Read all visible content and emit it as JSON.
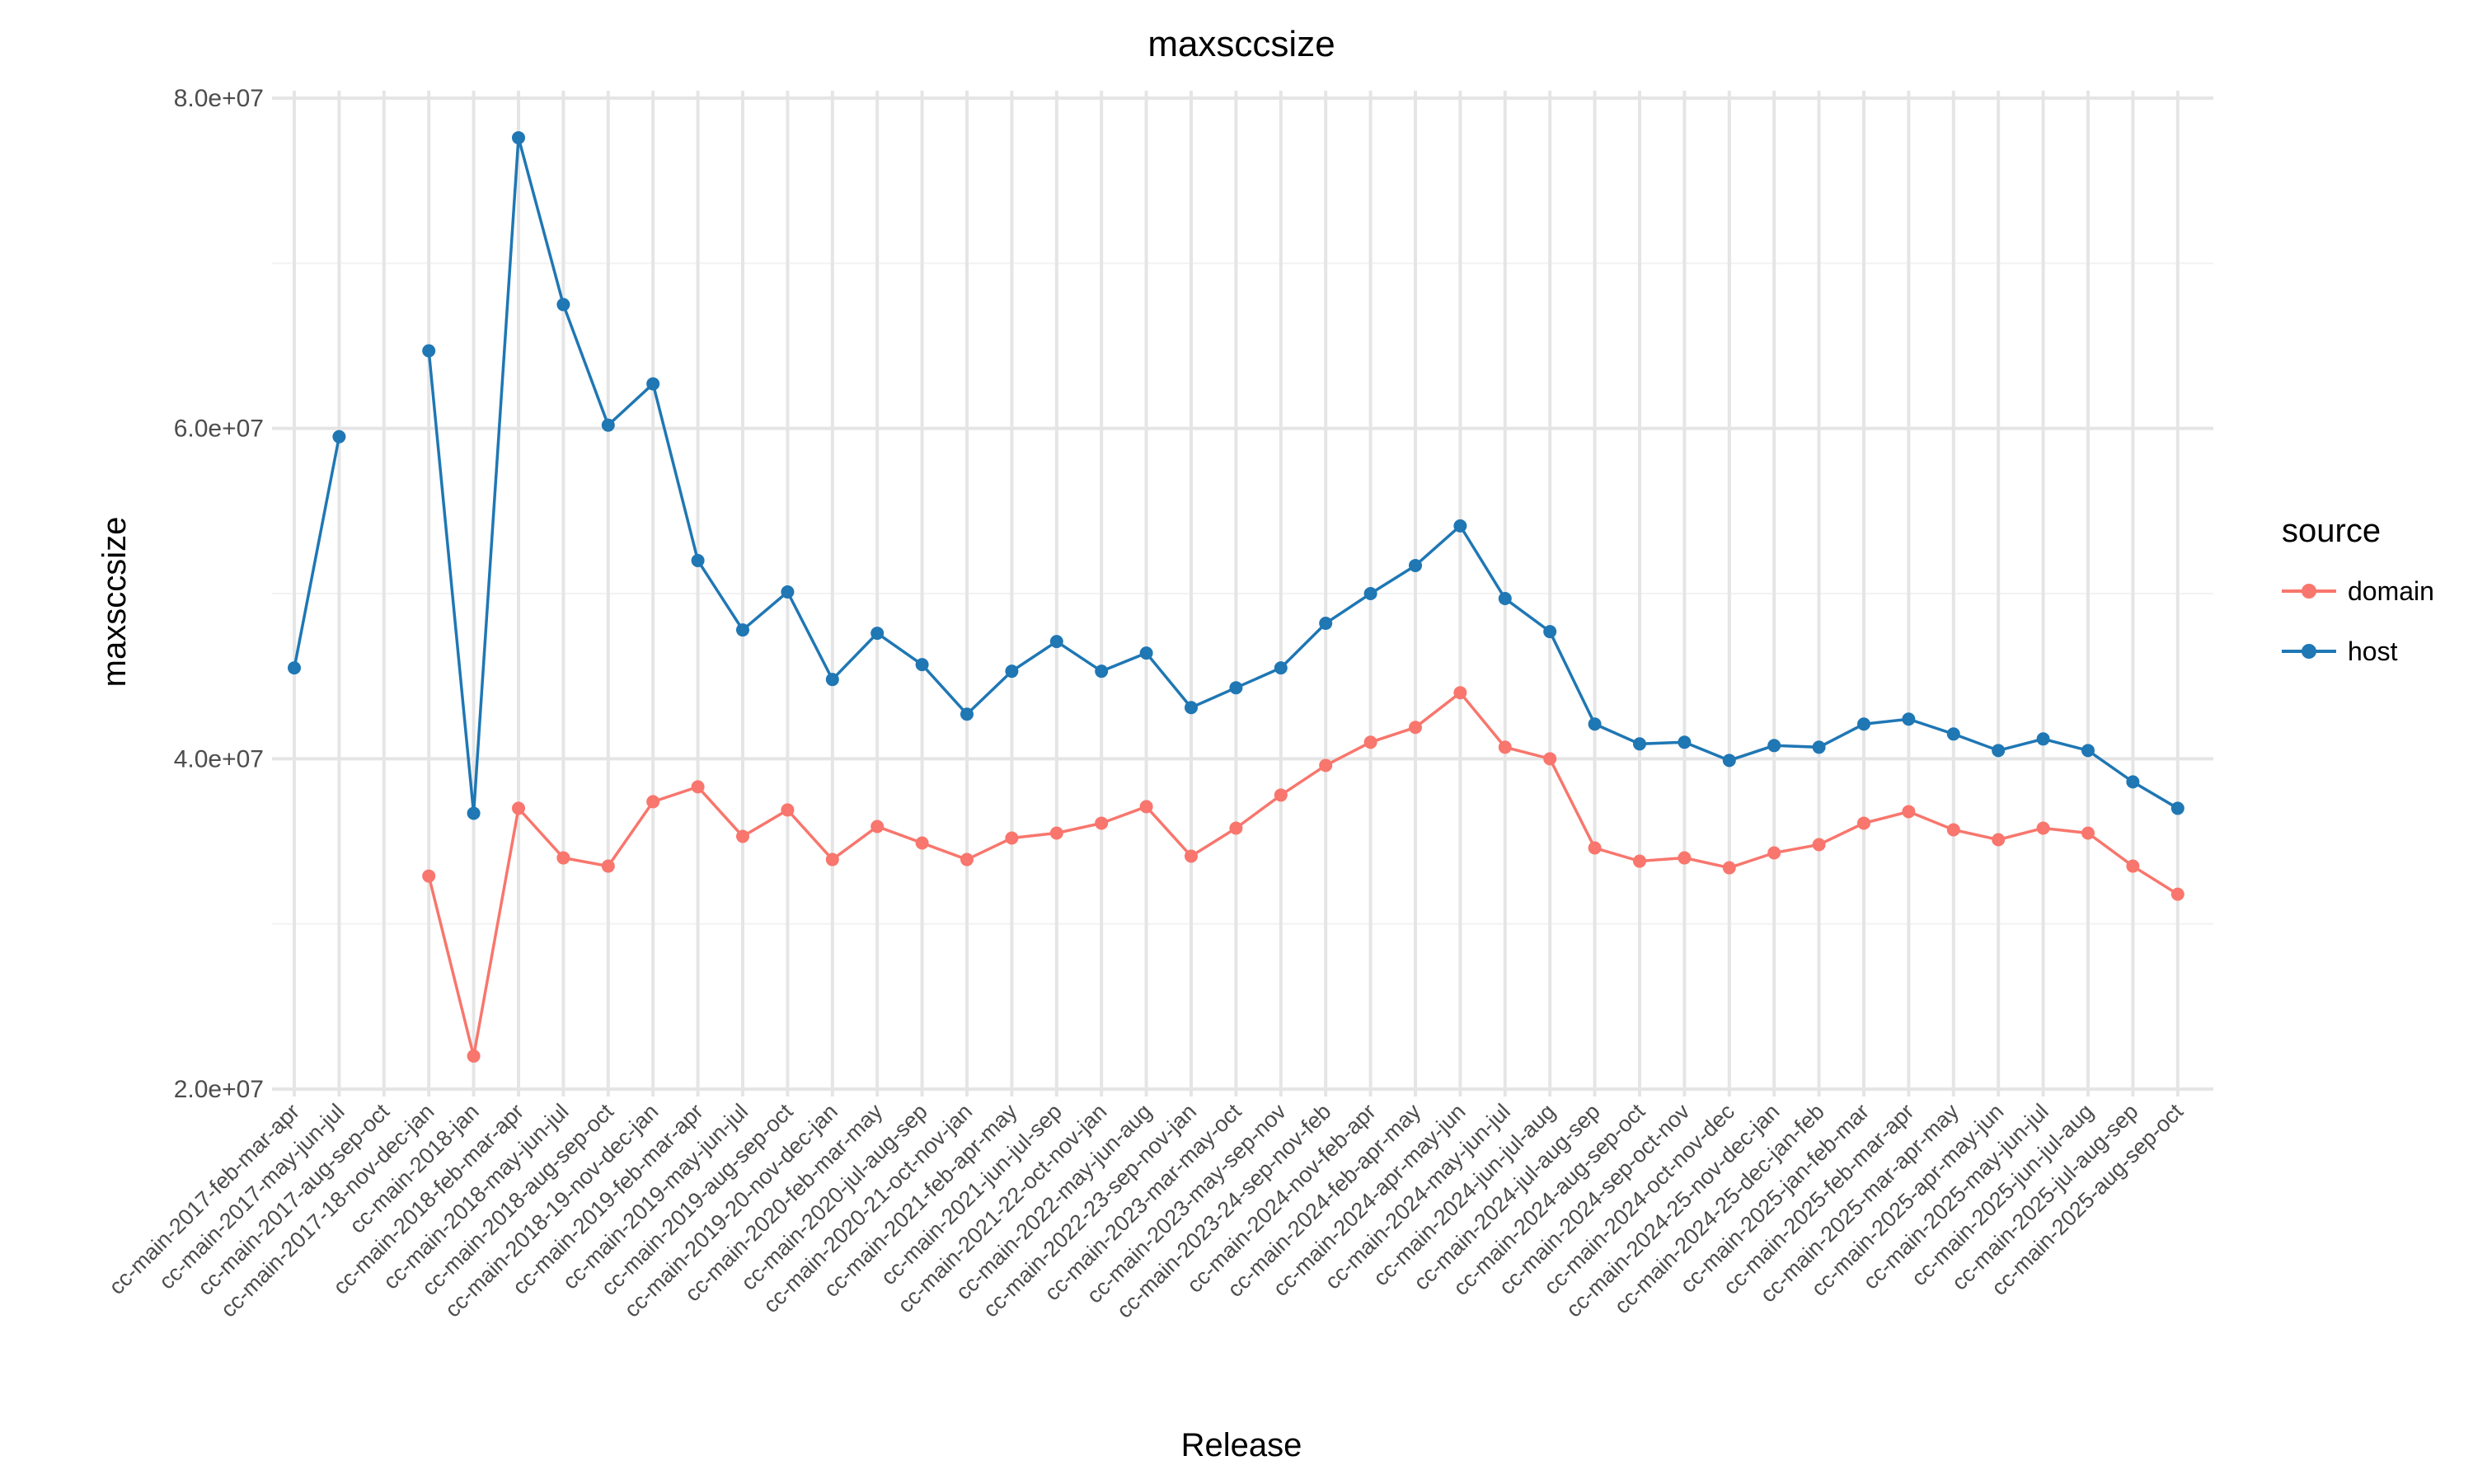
{
  "chart_data": {
    "type": "line",
    "title": "maxsccsize",
    "xlabel": "Release",
    "ylabel": "maxsccsize",
    "ylim": [
      20000000,
      80000000
    ],
    "yticks": [
      20000000,
      40000000,
      60000000,
      80000000
    ],
    "ytick_labels": [
      "2.0e+07",
      "4.0e+07",
      "6.0e+07",
      "8.0e+07"
    ],
    "grid": true,
    "legend": {
      "title": "source",
      "placement": "right"
    },
    "categories": [
      "cc-main-2017-feb-mar-apr",
      "cc-main-2017-may-jun-jul",
      "cc-main-2017-aug-sep-oct",
      "cc-main-2017-18-nov-dec-jan",
      "cc-main-2018-jan",
      "cc-main-2018-feb-mar-apr",
      "cc-main-2018-may-jun-jul",
      "cc-main-2018-aug-sep-oct",
      "cc-main-2018-19-nov-dec-jan",
      "cc-main-2019-feb-mar-apr",
      "cc-main-2019-may-jun-jul",
      "cc-main-2019-aug-sep-oct",
      "cc-main-2019-20-nov-dec-jan",
      "cc-main-2020-feb-mar-may",
      "cc-main-2020-jul-aug-sep",
      "cc-main-2020-21-oct-nov-jan",
      "cc-main-2021-feb-apr-may",
      "cc-main-2021-jun-jul-sep",
      "cc-main-2021-22-oct-nov-jan",
      "cc-main-2022-may-jun-aug",
      "cc-main-2022-23-sep-nov-jan",
      "cc-main-2023-mar-may-oct",
      "cc-main-2023-may-sep-nov",
      "cc-main-2023-24-sep-nov-feb",
      "cc-main-2024-nov-feb-apr",
      "cc-main-2024-feb-apr-may",
      "cc-main-2024-apr-may-jun",
      "cc-main-2024-may-jun-jul",
      "cc-main-2024-jun-jul-aug",
      "cc-main-2024-jul-aug-sep",
      "cc-main-2024-aug-sep-oct",
      "cc-main-2024-sep-oct-nov",
      "cc-main-2024-oct-nov-dec",
      "cc-main-2024-25-nov-dec-jan",
      "cc-main-2024-25-dec-jan-feb",
      "cc-main-2025-jan-feb-mar",
      "cc-main-2025-feb-mar-apr",
      "cc-main-2025-mar-apr-may",
      "cc-main-2025-apr-may-jun",
      "cc-main-2025-may-jun-jul",
      "cc-main-2025-jun-jul-aug",
      "cc-main-2025-jul-aug-sep",
      "cc-main-2025-aug-sep-oct"
    ],
    "series": [
      {
        "name": "domain",
        "color": "#F8766D",
        "values": [
          null,
          null,
          null,
          32900000,
          22000000,
          37000000,
          34000000,
          33500000,
          37400000,
          38300000,
          35300000,
          36900000,
          33900000,
          35900000,
          34900000,
          33900000,
          35200000,
          35500000,
          36100000,
          37100000,
          34100000,
          35800000,
          37800000,
          39600000,
          41000000,
          41900000,
          44000000,
          40700000,
          40000000,
          34600000,
          33800000,
          34000000,
          33400000,
          34300000,
          34800000,
          36100000,
          36800000,
          35700000,
          35100000,
          35800000,
          35500000,
          33500000,
          31800000
        ]
      },
      {
        "name": "host",
        "color": "#1F77B4",
        "values": [
          45500000,
          59500000,
          null,
          64700000,
          36700000,
          77600000,
          67500000,
          60200000,
          62700000,
          52000000,
          47800000,
          50100000,
          44800000,
          47600000,
          45700000,
          42700000,
          45300000,
          47100000,
          45300000,
          46400000,
          43100000,
          44300000,
          45500000,
          48200000,
          50000000,
          51700000,
          54100000,
          49700000,
          47700000,
          42100000,
          40900000,
          41000000,
          39900000,
          40800000,
          40700000,
          42100000,
          42400000,
          41500000,
          40500000,
          41200000,
          40500000,
          38600000,
          37000000
        ]
      }
    ]
  }
}
